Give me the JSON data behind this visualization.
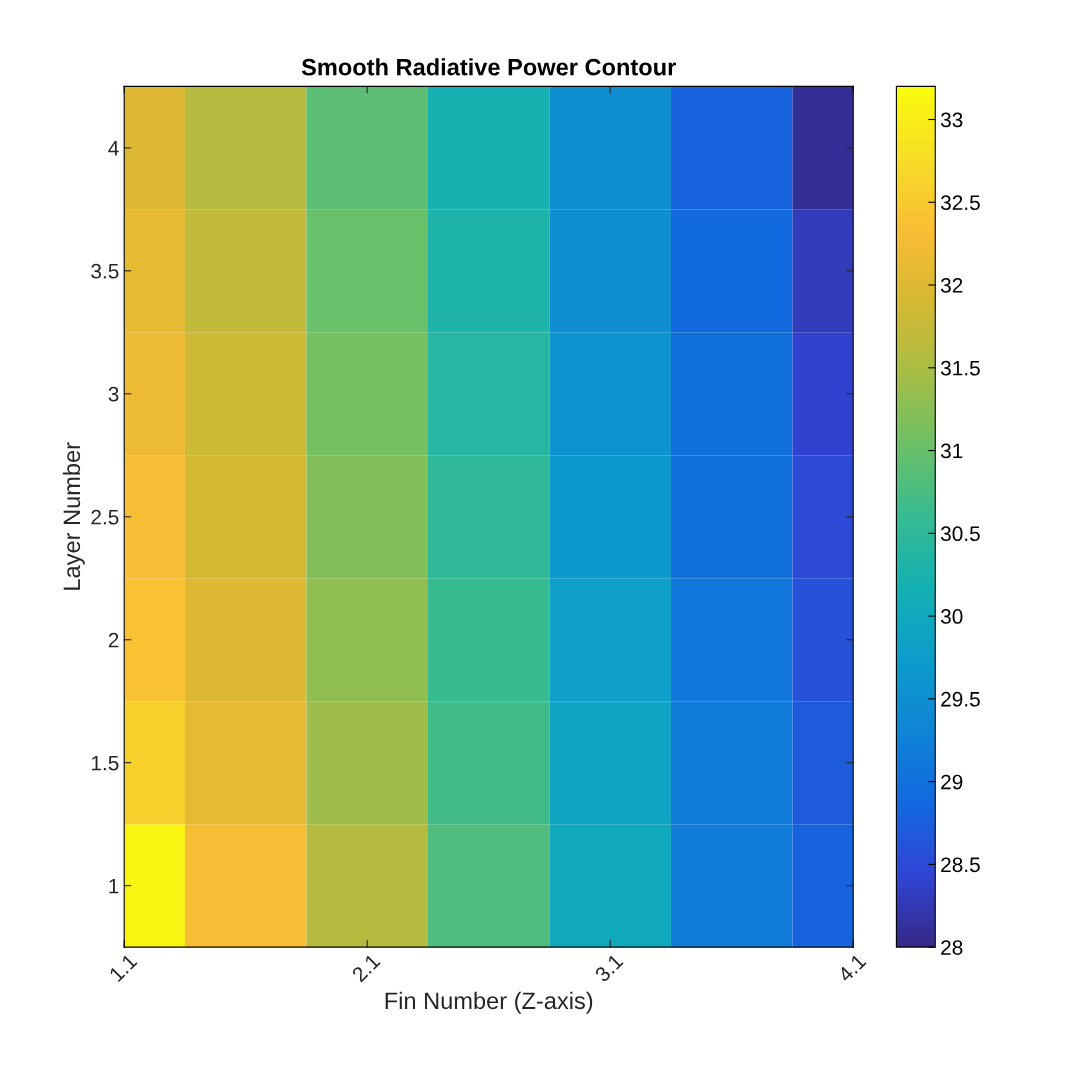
{
  "chart_data": {
    "type": "heatmap",
    "title": "Smooth Radiative Power Contour",
    "xlabel": "Fin Number (Z-axis)",
    "ylabel": "Layer Number",
    "x": [
      1.1,
      1.6,
      2.1,
      2.6,
      3.1,
      3.6,
      4.1
    ],
    "y_categories": [
      "4",
      "3.5",
      "3",
      "2.5",
      "2",
      "1.5",
      "1"
    ],
    "cells": [
      [
        32.0,
        31.6,
        30.9,
        30.2,
        29.5,
        28.8,
        28.1
      ],
      [
        32.1,
        31.7,
        31.0,
        30.3,
        29.5,
        28.9,
        28.3
      ],
      [
        32.2,
        31.8,
        31.1,
        30.4,
        29.6,
        29.0,
        28.4
      ],
      [
        32.3,
        31.9,
        31.2,
        30.5,
        29.7,
        29.0,
        28.5
      ],
      [
        32.4,
        32.0,
        31.3,
        30.6,
        29.8,
        29.1,
        28.6
      ],
      [
        32.6,
        32.1,
        31.4,
        30.7,
        29.9,
        29.2,
        28.7
      ],
      [
        33.1,
        32.3,
        31.6,
        30.8,
        30.0,
        29.2,
        28.8
      ]
    ],
    "xlim": [
      1.1,
      4.1
    ],
    "xticks": [
      1.1,
      2.1,
      3.1,
      4.1
    ],
    "clim": [
      28,
      33.2
    ],
    "cticks": [
      28,
      28.5,
      29,
      29.5,
      30,
      30.5,
      31,
      31.5,
      32,
      32.5,
      33
    ],
    "grid": false
  }
}
